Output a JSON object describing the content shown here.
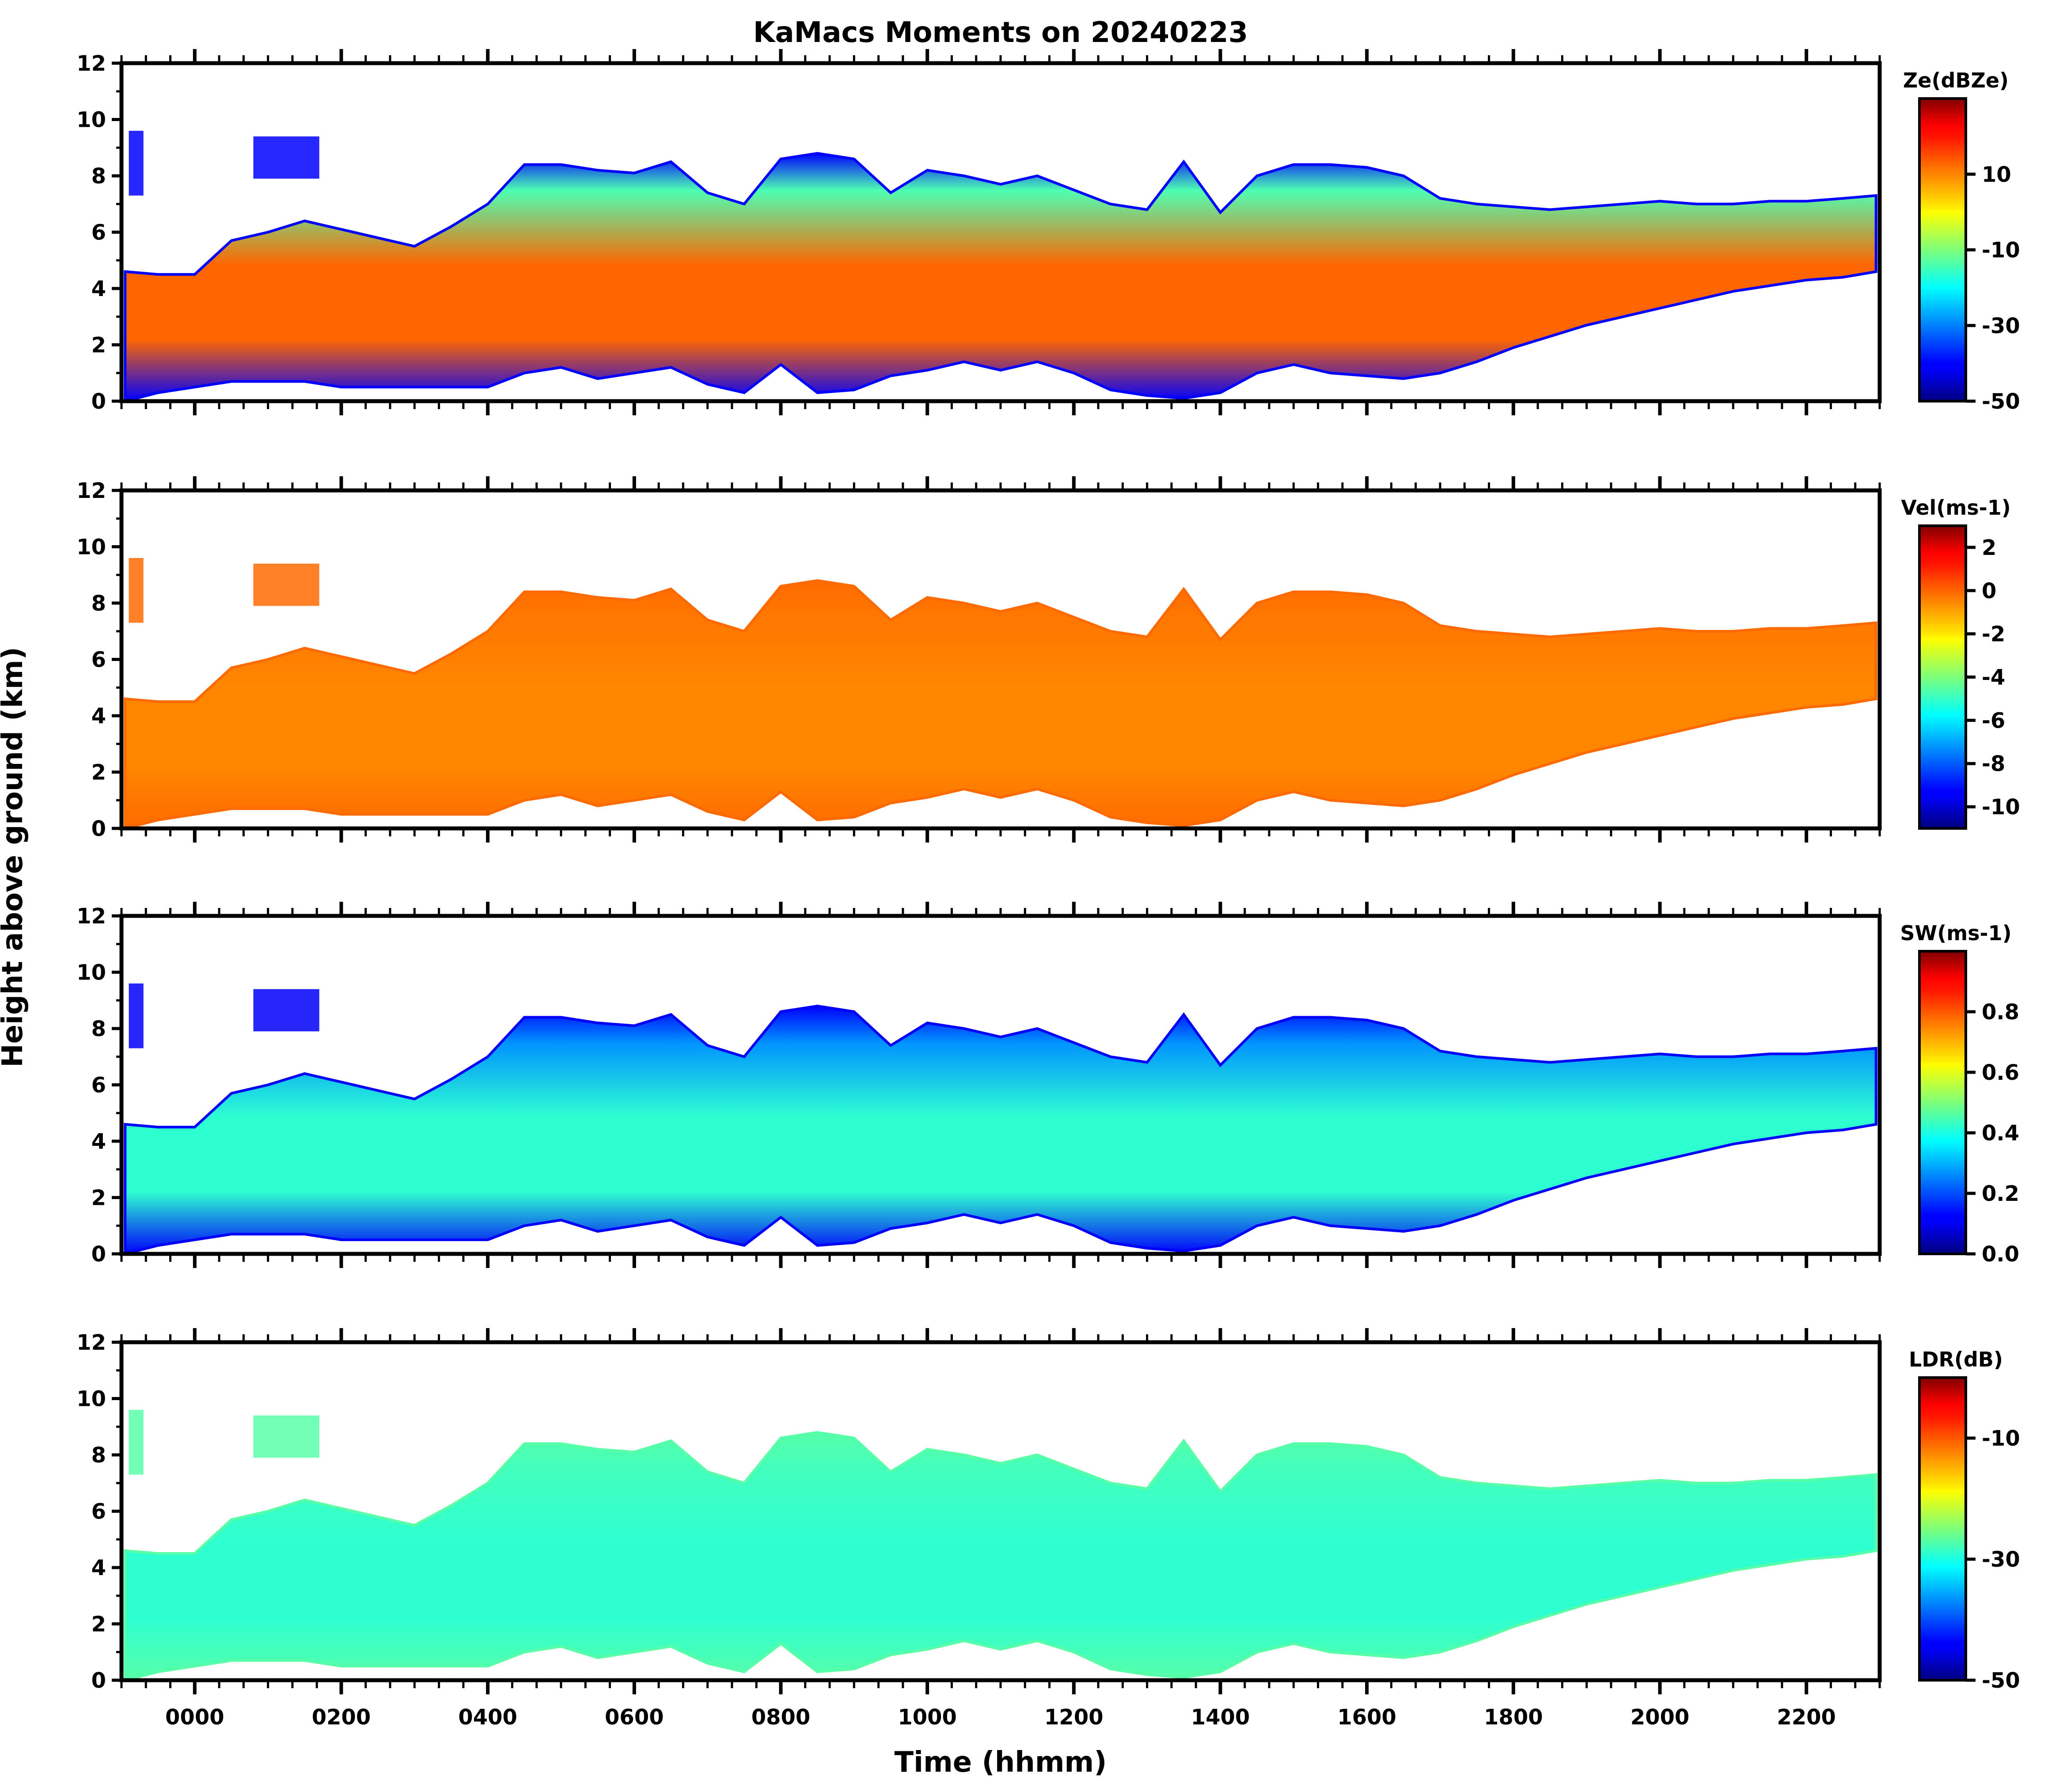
{
  "chart_data": {
    "type": "heatmap",
    "title": "KaMacs Moments on 20240223",
    "xlabel": "Time (hhmm)",
    "ylabel": "Height above ground (km)",
    "x_range_hours": [
      -1.0,
      23.0
    ],
    "x_ticks": [
      {
        "value": 0,
        "label": "0000"
      },
      {
        "value": 2,
        "label": "0200"
      },
      {
        "value": 4,
        "label": "0400"
      },
      {
        "value": 6,
        "label": "0600"
      },
      {
        "value": 8,
        "label": "0800"
      },
      {
        "value": 10,
        "label": "1000"
      },
      {
        "value": 12,
        "label": "1200"
      },
      {
        "value": 14,
        "label": "1400"
      },
      {
        "value": 16,
        "label": "1600"
      },
      {
        "value": 18,
        "label": "1800"
      },
      {
        "value": 20,
        "label": "2000"
      },
      {
        "value": 22,
        "label": "2200"
      }
    ],
    "y_range_km": [
      0,
      12
    ],
    "y_ticks": [
      "0",
      "2",
      "4",
      "6",
      "8",
      "10",
      "12"
    ],
    "cloud_profile": {
      "time_h": [
        -0.95,
        -0.5,
        0.0,
        0.5,
        1.0,
        1.5,
        2.0,
        2.5,
        3.0,
        3.5,
        4.0,
        4.5,
        5.0,
        5.5,
        6.0,
        6.5,
        7.0,
        7.5,
        8.0,
        8.5,
        9.0,
        9.5,
        10.0,
        10.5,
        11.0,
        11.5,
        12.0,
        12.5,
        13.0,
        13.5,
        14.0,
        14.5,
        15.0,
        15.5,
        16.0,
        16.5,
        17.0,
        17.5,
        18.0,
        18.5,
        19.0,
        19.5,
        20.0,
        20.5,
        21.0,
        21.5,
        22.0,
        22.5,
        22.95
      ],
      "top_km": [
        4.6,
        4.5,
        4.5,
        5.7,
        6.0,
        6.4,
        6.1,
        5.8,
        5.5,
        6.2,
        7.0,
        8.4,
        8.4,
        8.2,
        8.1,
        8.5,
        7.4,
        7.0,
        8.6,
        8.8,
        8.6,
        7.4,
        8.2,
        8.0,
        7.7,
        8.0,
        7.5,
        7.0,
        6.8,
        8.5,
        6.7,
        8.0,
        8.4,
        8.4,
        8.3,
        8.0,
        7.2,
        7.0,
        6.9,
        6.8,
        6.9,
        7.0,
        7.1,
        7.0,
        7.0,
        7.1,
        7.1,
        7.2,
        7.3
      ],
      "base_km": [
        0.0,
        0.3,
        0.5,
        0.7,
        0.7,
        0.7,
        0.5,
        0.5,
        0.5,
        0.5,
        0.5,
        1.0,
        1.2,
        0.8,
        1.0,
        1.2,
        0.6,
        0.3,
        1.3,
        0.3,
        0.4,
        0.9,
        1.1,
        1.4,
        1.1,
        1.4,
        1.0,
        0.4,
        0.2,
        0.1,
        0.3,
        1.0,
        1.3,
        1.0,
        0.9,
        0.8,
        1.0,
        1.4,
        1.9,
        2.3,
        2.7,
        3.0,
        3.3,
        3.6,
        3.9,
        4.1,
        4.3,
        4.4,
        4.6
      ]
    },
    "upper_cloud_cells": [
      {
        "t0": -0.9,
        "t1": -0.7,
        "bottom_km": 7.3,
        "top_km": 9.6
      },
      {
        "t0": 0.8,
        "t1": 1.7,
        "bottom_km": 7.9,
        "top_km": 9.4
      }
    ],
    "panels": [
      {
        "variable": "Z_e",
        "colorbar_label": "Ze(dBZe)",
        "units": "dBZe",
        "vmin": -50,
        "vmax": 30,
        "colorbar_ticks": [
          "10",
          "-10",
          "-30",
          "-50"
        ],
        "colorbar_tick_values": [
          10,
          -10,
          -30,
          -50
        ],
        "core_value": 12,
        "edge_value": -40
      },
      {
        "variable": "Vel",
        "colorbar_label": "Vel(ms-1)",
        "units": "m s-1",
        "vmin": -11,
        "vmax": 3,
        "colorbar_ticks": [
          "2",
          "0",
          "-2",
          "-4",
          "-6",
          "-8",
          "-10"
        ],
        "colorbar_tick_values": [
          2,
          0,
          -2,
          -4,
          -6,
          -8,
          -10
        ],
        "core_value": -0.6,
        "edge_value": -0.2
      },
      {
        "variable": "SW",
        "colorbar_label": "SW(ms-1)",
        "units": "m s-1",
        "vmin": 0.0,
        "vmax": 1.0,
        "colorbar_ticks": [
          "0.8",
          "0.6",
          "0.4",
          "0.2",
          "0.0"
        ],
        "colorbar_tick_values": [
          0.8,
          0.6,
          0.4,
          0.2,
          0.0
        ],
        "core_value": 0.42,
        "edge_value": 0.12
      },
      {
        "variable": "LDR",
        "colorbar_label": "LDR(dB)",
        "units": "dB",
        "vmin": -50,
        "vmax": 0,
        "colorbar_ticks": [
          "-10",
          "-30",
          "-50"
        ],
        "colorbar_tick_values": [
          -10,
          -30,
          -50
        ],
        "core_value": -29,
        "edge_value": -27
      }
    ]
  }
}
